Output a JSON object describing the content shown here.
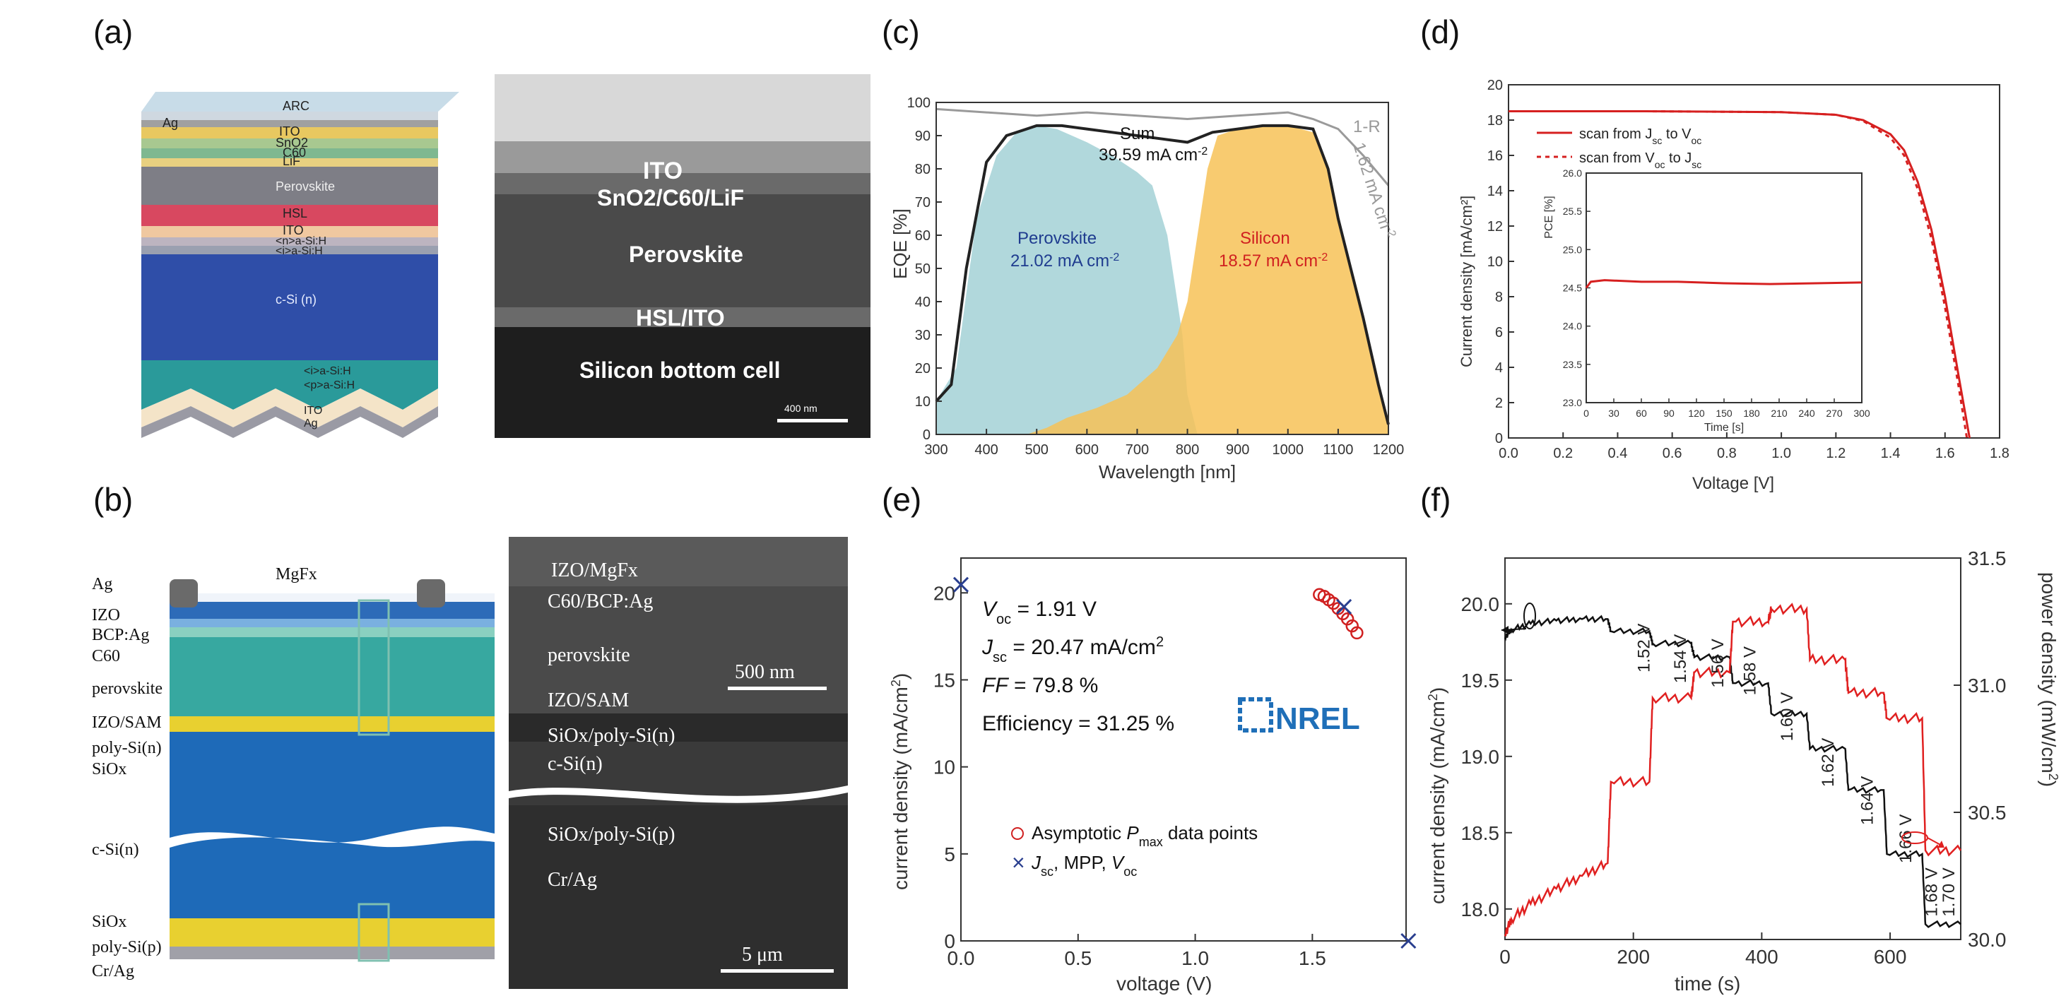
{
  "panels": {
    "a": "(a)",
    "b": "(b)",
    "c": "(c)",
    "d": "(d)",
    "e": "(e)",
    "f": "(f)"
  },
  "a": {
    "layers": [
      "ARC",
      "ITO",
      "SnO2",
      "C60",
      "LiF",
      "Perovskite",
      "HSL",
      "ITO",
      "<n>a-Si:H",
      "<i>a-Si:H",
      "c-Si (n)",
      "<i>a-Si:H",
      "<p>a-Si:H",
      "ITO",
      "Ag"
    ],
    "ag_label": "Ag",
    "sem_labels": [
      "ITO",
      "SnO2/C60/LiF",
      "Perovskite",
      "HSL/ITO",
      "Silicon bottom cell"
    ],
    "scale": "400 nm"
  },
  "b": {
    "labels": [
      "Ag",
      "IZO",
      "BCP:Ag",
      "C60",
      "perovskite",
      "IZO/SAM",
      "poly-Si(n)",
      "SiOx",
      "c-Si(n)",
      "SiOx",
      "poly-Si(p)",
      "Cr/Ag"
    ],
    "mgf": "MgFx",
    "sem_labels": [
      "IZO/MgFx",
      "C60/BCP:Ag",
      "perovskite",
      "IZO/SAM",
      "SiOx/poly-Si(n)",
      "c-Si(n)",
      "SiOx/poly-Si(p)",
      "Cr/Ag"
    ],
    "scale1": "500 nm",
    "scale2": "5 μm"
  },
  "chart_data": [
    {
      "panel": "c",
      "type": "area",
      "xlabel": "Wavelength [nm]",
      "ylabel": "EQE [%]",
      "xlim": [
        300,
        1200
      ],
      "ylim": [
        0,
        100
      ],
      "xticks": [
        300,
        400,
        500,
        600,
        700,
        800,
        900,
        1000,
        1100,
        1200
      ],
      "yticks": [
        0,
        10,
        20,
        30,
        40,
        50,
        60,
        70,
        80,
        90,
        100
      ],
      "series": [
        {
          "name": "Perovskite",
          "label": "21.02 mA cm",
          "color": "#a9d4d8",
          "x": [
            300,
            340,
            380,
            420,
            460,
            500,
            540,
            600,
            650,
            700,
            730,
            760,
            790,
            800,
            820
          ],
          "y": [
            10,
            20,
            65,
            84,
            91,
            93,
            92,
            88,
            84,
            79,
            75,
            60,
            30,
            12,
            0
          ]
        },
        {
          "name": "Silicon",
          "label": "18.57 mA cm",
          "color": "#f7c257",
          "x": [
            480,
            520,
            560,
            620,
            680,
            740,
            780,
            800,
            820,
            840,
            860,
            900,
            950,
            1000,
            1050,
            1080,
            1100,
            1150,
            1200
          ],
          "y": [
            0,
            2,
            5,
            8,
            12,
            20,
            30,
            40,
            60,
            80,
            90,
            92,
            93,
            93,
            91,
            80,
            65,
            35,
            2
          ]
        },
        {
          "name": "Sum",
          "label": "39.59 mA cm",
          "color": "#222222",
          "x": [
            300,
            330,
            360,
            400,
            440,
            480,
            500,
            550,
            600,
            650,
            700,
            750,
            800,
            850,
            900,
            950,
            1000,
            1050,
            1080,
            1100,
            1150,
            1180,
            1200
          ],
          "y": [
            10,
            15,
            50,
            82,
            90,
            92,
            93,
            93,
            92,
            91,
            90,
            89,
            88,
            91,
            92,
            93,
            93,
            92,
            80,
            65,
            35,
            15,
            3
          ]
        },
        {
          "name": "1-R",
          "label": "1.62 mA cm",
          "color": "#9a9a9a",
          "x": [
            300,
            400,
            500,
            600,
            700,
            800,
            900,
            1000,
            1050,
            1100,
            1150,
            1200
          ],
          "y": [
            98,
            97,
            96,
            97,
            96,
            95,
            96,
            97,
            95,
            92,
            84,
            75
          ]
        }
      ]
    },
    {
      "panel": "d",
      "type": "line",
      "xlabel": "Voltage [V]",
      "ylabel": "Current density [mA/cm²]",
      "xlim": [
        0.0,
        1.8
      ],
      "ylim": [
        0,
        20
      ],
      "xticks": [
        0.0,
        0.2,
        0.4,
        0.6,
        0.8,
        1.0,
        1.2,
        1.4,
        1.6,
        1.8
      ],
      "yticks": [
        0,
        2,
        4,
        6,
        8,
        10,
        12,
        14,
        16,
        18,
        20
      ],
      "legend": [
        "scan from Jsc to Voc",
        "scan from Voc to Jsc"
      ],
      "series": [
        {
          "name": "scan from Jsc to Voc",
          "x": [
            0,
            0.5,
            1.0,
            1.2,
            1.3,
            1.4,
            1.45,
            1.5,
            1.55,
            1.6,
            1.65,
            1.69
          ],
          "y": [
            18.5,
            18.5,
            18.45,
            18.3,
            18.0,
            17.2,
            16.3,
            14.5,
            11.8,
            8.0,
            3.5,
            0
          ]
        },
        {
          "name": "scan from Voc to Jsc",
          "x": [
            0,
            0.5,
            1.0,
            1.2,
            1.3,
            1.4,
            1.45,
            1.5,
            1.55,
            1.6,
            1.65,
            1.68
          ],
          "y": [
            18.5,
            18.5,
            18.45,
            18.3,
            17.95,
            17.0,
            16.0,
            14.1,
            11.3,
            7.4,
            2.9,
            0
          ]
        }
      ],
      "inset": {
        "xlabel": "Time [s]",
        "ylabel": "PCE [%]",
        "xlim": [
          0,
          300
        ],
        "ylim": [
          23.0,
          26.0
        ],
        "xticks": [
          0,
          30,
          60,
          90,
          120,
          150,
          180,
          210,
          240,
          270,
          300
        ],
        "yticks": [
          23.0,
          23.5,
          24.0,
          24.5,
          25.0,
          25.5,
          26.0
        ],
        "x": [
          0,
          5,
          20,
          60,
          100,
          150,
          200,
          250,
          300
        ],
        "y": [
          24.5,
          24.58,
          24.6,
          24.58,
          24.58,
          24.56,
          24.55,
          24.56,
          24.57
        ]
      }
    },
    {
      "panel": "e",
      "type": "scatter",
      "xlabel": "voltage (V)",
      "ylabel": "current density (mA/cm²)",
      "xlim": [
        0,
        1.9
      ],
      "ylim": [
        0,
        22
      ],
      "xticks": [
        0.0,
        0.5,
        1.0,
        1.5
      ],
      "yticks": [
        0,
        5,
        10,
        15,
        20
      ],
      "annotations": [
        "V_oc = 1.91 V",
        "J_sc = 20.47 mA/cm²",
        "FF = 79.8 %",
        "Efficiency = 31.25 %"
      ],
      "annotation_lines": [
        {
          "sym": "V",
          "sub": "oc",
          "text": " = 1.91 V"
        },
        {
          "sym": "J",
          "sub": "sc",
          "text": " = 20.47 mA/cm"
        },
        {
          "sym": "FF",
          "sub": "",
          "text": " = 79.8 %"
        },
        {
          "sym": "",
          "sub": "",
          "text": "Efficiency = 31.25 %"
        }
      ],
      "legend": [
        "Asymptotic Pmax data points",
        "Jsc, MPP, Voc"
      ],
      "logo": "NREL",
      "series": [
        {
          "name": "Asymptotic Pmax data points",
          "marker": "circle",
          "color": "#d02020",
          "x": [
            1.53,
            1.55,
            1.57,
            1.59,
            1.61,
            1.63,
            1.65,
            1.67,
            1.69
          ],
          "y": [
            19.9,
            19.8,
            19.6,
            19.4,
            19.1,
            18.8,
            18.5,
            18.1,
            17.7
          ]
        },
        {
          "name": "Jsc, MPP, Voc",
          "marker": "x",
          "color": "#2a3f8f",
          "x": [
            0.0,
            1.635,
            1.91
          ],
          "y": [
            20.47,
            19.2,
            0.0
          ]
        }
      ]
    },
    {
      "panel": "f",
      "type": "line",
      "xlabel": "time (s)",
      "ylabel": "current density (mA/cm²)",
      "y2label": "power density (mW/cm²)",
      "xlim": [
        0,
        710
      ],
      "ylim": [
        17.8,
        20.3
      ],
      "y2lim": [
        30.0,
        31.5
      ],
      "xticks": [
        0,
        200,
        400,
        600
      ],
      "yticks": [
        18.0,
        18.5,
        19.0,
        19.5,
        20.0
      ],
      "y2ticks": [
        30.0,
        30.5,
        31.0,
        31.5
      ],
      "voltage_labels": [
        "1.52 V",
        "1.54 V",
        "1.56 V",
        "1.58 V",
        "1.60 V",
        "1.62 V",
        "1.64 V",
        "1.66 V",
        "1.68 V",
        "1.70 V"
      ],
      "voltage_label_pos": [
        [
          225,
          19.55
        ],
        [
          282,
          19.48
        ],
        [
          340,
          19.45
        ],
        [
          390,
          19.4
        ],
        [
          448,
          19.1
        ],
        [
          512,
          18.8
        ],
        [
          573,
          18.55
        ],
        [
          633,
          18.3
        ],
        [
          673,
          17.95
        ],
        [
          700,
          17.95
        ]
      ],
      "series": [
        {
          "name": "current density",
          "axis": "left",
          "color": "#111111",
          "x": [
            0,
            10,
            40,
            80,
            120,
            160,
            165,
            225,
            230,
            290,
            295,
            350,
            355,
            410,
            415,
            470,
            475,
            530,
            535,
            590,
            595,
            650,
            655,
            710
          ],
          "y": [
            19.78,
            19.83,
            19.87,
            19.89,
            19.9,
            19.9,
            19.82,
            19.82,
            19.74,
            19.74,
            19.65,
            19.65,
            19.48,
            19.48,
            19.28,
            19.28,
            19.05,
            19.05,
            18.78,
            18.78,
            18.36,
            18.36,
            17.9,
            17.9
          ]
        },
        {
          "name": "power density",
          "axis": "right",
          "color": "#e02020",
          "x": [
            0,
            10,
            40,
            80,
            120,
            160,
            165,
            225,
            230,
            290,
            295,
            350,
            355,
            410,
            415,
            470,
            475,
            530,
            535,
            590,
            595,
            650,
            655,
            710
          ],
          "y": [
            30.02,
            30.08,
            30.14,
            30.2,
            30.25,
            30.3,
            30.62,
            30.62,
            30.95,
            30.95,
            31.05,
            31.05,
            31.25,
            31.25,
            31.3,
            31.3,
            31.1,
            31.1,
            30.97,
            30.97,
            30.87,
            30.87,
            30.35,
            30.35
          ]
        }
      ]
    }
  ]
}
